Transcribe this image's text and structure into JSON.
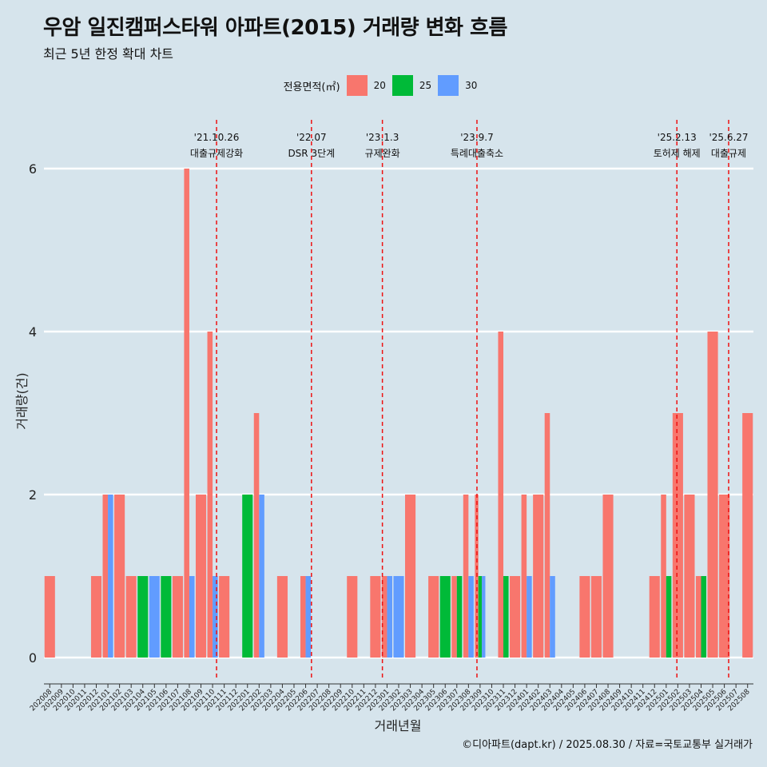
{
  "title": "우암 일진캠퍼스타워 아파트(2015) 거래량 변화 흐름",
  "subtitle": "최근 5년 한정 확대 차트",
  "caption": "©디아파트(dapt.kr) / 2025.08.30 / 자료=국토교통부 실거래가",
  "legend": {
    "title": "전용면적(㎡)",
    "items": [
      {
        "label": "20",
        "color": "#f8766d"
      },
      {
        "label": "25",
        "color": "#00ba38"
      },
      {
        "label": "30",
        "color": "#619cff"
      }
    ]
  },
  "chart_data": {
    "type": "bar",
    "xlabel": "거래년월",
    "ylabel": "거래량(건)",
    "ylim": [
      0,
      6
    ],
    "yticks": [
      0,
      2,
      4,
      6
    ],
    "grid": true,
    "categories": [
      "202008",
      "202009",
      "202010",
      "202011",
      "202012",
      "202101",
      "202102",
      "202103",
      "202104",
      "202105",
      "202106",
      "202107",
      "202108",
      "202109",
      "202110",
      "202111",
      "202112",
      "202201",
      "202202",
      "202203",
      "202204",
      "202205",
      "202206",
      "202207",
      "202208",
      "202209",
      "202210",
      "202211",
      "202212",
      "202301",
      "202302",
      "202303",
      "202304",
      "202305",
      "202306",
      "202307",
      "202308",
      "202309",
      "202310",
      "202311",
      "202312",
      "202401",
      "202402",
      "202403",
      "202404",
      "202405",
      "202406",
      "202407",
      "202408",
      "202409",
      "202410",
      "202411",
      "202412",
      "202501",
      "202502",
      "202503",
      "202504",
      "202505",
      "202506",
      "202507",
      "202508"
    ],
    "series": [
      {
        "name": "20",
        "color": "#f8766d",
        "values": [
          1,
          0,
          0,
          0,
          1,
          2,
          2,
          1,
          0,
          0,
          0,
          1,
          6,
          2,
          4,
          1,
          0,
          0,
          3,
          0,
          1,
          0,
          1,
          0,
          0,
          0,
          1,
          0,
          1,
          1,
          0,
          2,
          0,
          1,
          0,
          1,
          2,
          2,
          0,
          4,
          1,
          2,
          2,
          3,
          0,
          0,
          1,
          1,
          2,
          0,
          0,
          0,
          1,
          2,
          3,
          2,
          1,
          4,
          2,
          0,
          3
        ]
      },
      {
        "name": "25",
        "color": "#00ba38",
        "values": [
          0,
          0,
          0,
          0,
          0,
          0,
          0,
          0,
          1,
          0,
          1,
          0,
          0,
          0,
          0,
          0,
          0,
          2,
          0,
          0,
          0,
          0,
          0,
          0,
          0,
          0,
          0,
          0,
          0,
          0,
          0,
          0,
          0,
          0,
          1,
          1,
          0,
          1,
          0,
          1,
          0,
          0,
          0,
          0,
          0,
          0,
          0,
          0,
          0,
          0,
          0,
          0,
          0,
          1,
          0,
          0,
          1,
          0,
          0,
          0,
          0
        ]
      },
      {
        "name": "30",
        "color": "#619cff",
        "values": [
          0,
          0,
          0,
          0,
          0,
          2,
          0,
          0,
          0,
          1,
          0,
          0,
          1,
          0,
          1,
          0,
          0,
          0,
          2,
          0,
          0,
          0,
          1,
          0,
          0,
          0,
          0,
          0,
          0,
          1,
          1,
          0,
          0,
          0,
          0,
          0,
          1,
          1,
          0,
          0,
          0,
          1,
          0,
          1,
          0,
          0,
          0,
          0,
          0,
          0,
          0,
          0,
          0,
          0,
          0,
          0,
          0,
          0,
          0,
          0,
          0
        ]
      }
    ],
    "events": [
      {
        "date": "'21.10.26",
        "label": "대출규제강화",
        "at": "202110",
        "frac": 0.84
      },
      {
        "date": "'22.07",
        "label": "DSR 3단계",
        "at": "202207",
        "frac": 0.0
      },
      {
        "date": "'23.1.3",
        "label": "규제완화",
        "at": "202301",
        "frac": 0.1
      },
      {
        "date": "'23.9.7",
        "label": "특례대출축소",
        "at": "202309",
        "frac": 0.23
      },
      {
        "date": "'25.2.13",
        "label": "토허제 해제",
        "at": "202502",
        "frac": 0.42
      },
      {
        "date": "'25.6.27",
        "label": "대출규제",
        "at": "202506",
        "frac": 0.87
      }
    ]
  }
}
